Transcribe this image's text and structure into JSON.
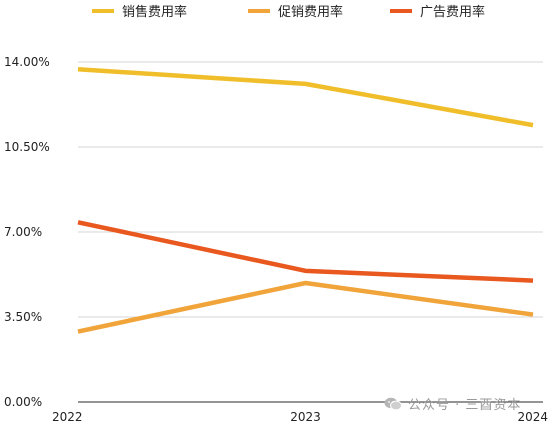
{
  "chart_data": {
    "type": "line",
    "categories": [
      "2022",
      "2023",
      "2024"
    ],
    "y_ticks": [
      "0.00%",
      "3.50%",
      "7.00%",
      "10.50%",
      "14.00%"
    ],
    "ylim": [
      0,
      14
    ],
    "grid": true,
    "legend_position": "top",
    "series": [
      {
        "name": "销售费用率",
        "color": "#F0BE2B",
        "values": [
          13.7,
          13.1,
          11.4
        ]
      },
      {
        "name": "促销费用率",
        "color": "#F0A43A",
        "values": [
          2.9,
          4.9,
          3.6
        ]
      },
      {
        "name": "广告费用率",
        "color": "#E8581F",
        "values": [
          7.4,
          5.4,
          5.0
        ]
      }
    ]
  },
  "watermark": {
    "icon": "wechat-icon",
    "text": "公众号 · 三酉资本"
  }
}
